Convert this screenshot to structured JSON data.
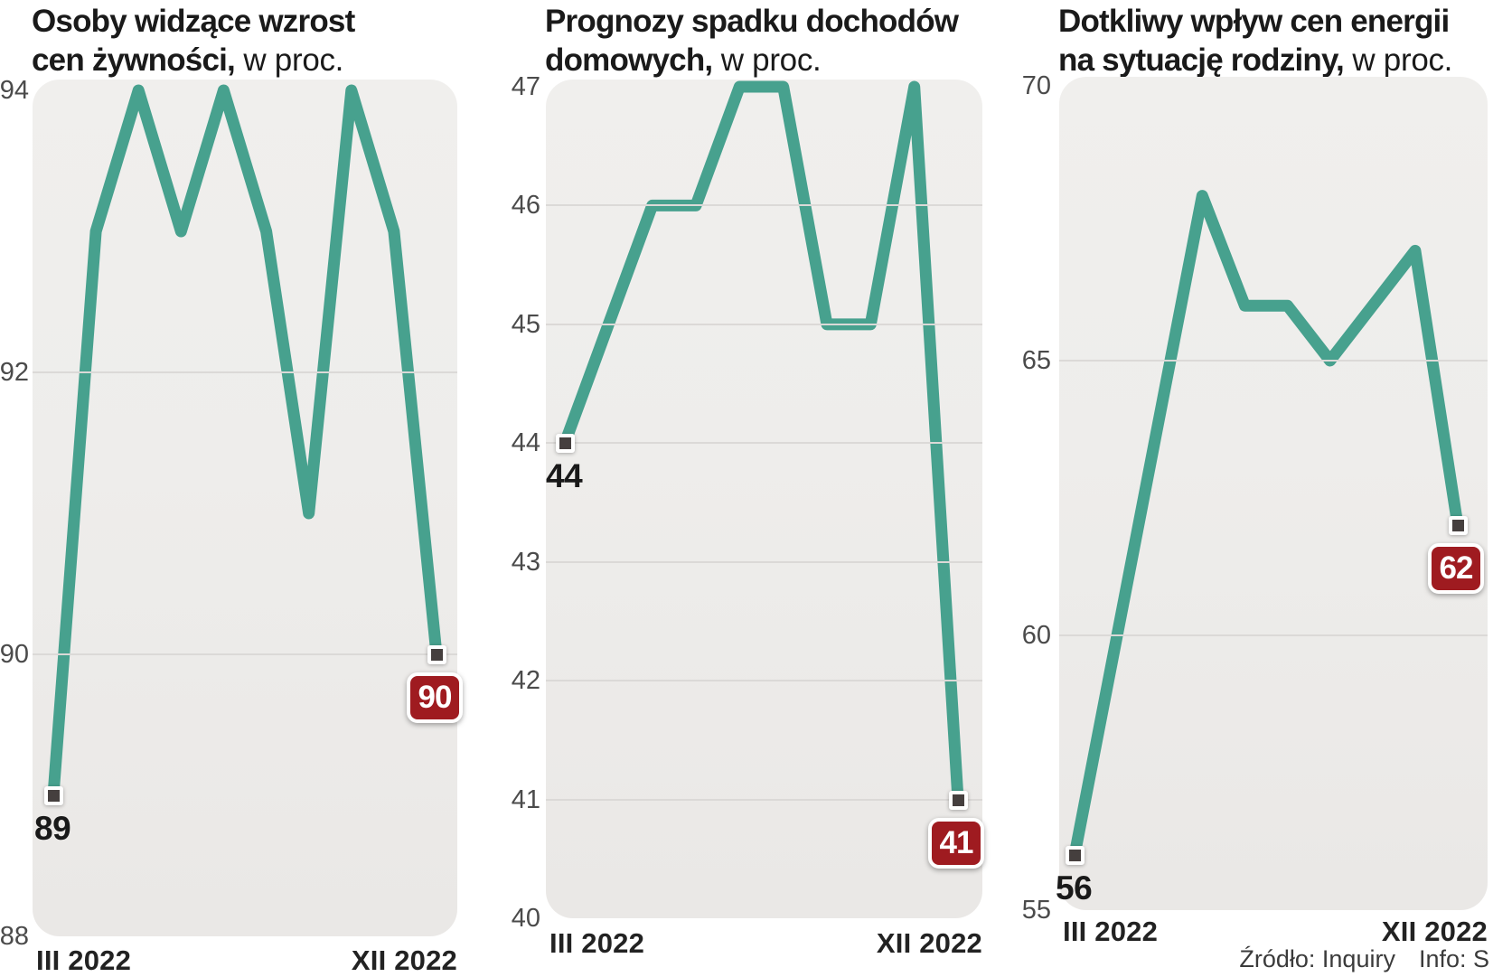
{
  "charts": [
    {
      "title_line1": "Osoby widzące wzrost",
      "title_line2_bold": "cen żywności,",
      "title_line2_light": " w proc.",
      "x_start": "III 2022",
      "x_end": "XII 2022",
      "start_label": "89",
      "end_label": "90"
    },
    {
      "title_line1": "Prognozy spadku dochodów",
      "title_line2_bold": "domowych,",
      "title_line2_light": " w proc.",
      "x_start": "III 2022",
      "x_end": "XII 2022",
      "start_label": "44",
      "end_label": "41"
    },
    {
      "title_line1": "Dotkliwy wpływ cen energii",
      "title_line2_bold": "na sytuację rodziny,",
      "title_line2_light": " w proc.",
      "x_start": "III 2022",
      "x_end": "XII 2022",
      "start_label": "56",
      "end_label": "62"
    }
  ],
  "chart_data": [
    {
      "type": "line",
      "title": "Osoby widzące wzrost cen żywności, w proc.",
      "values": [
        89,
        93,
        94,
        93,
        94,
        93,
        91,
        94,
        93,
        90
      ],
      "yticks": [
        94,
        92,
        90,
        88
      ],
      "ylim": [
        88,
        94
      ],
      "x_axis": {
        "start_label": "III 2022",
        "end_label": "XII 2022",
        "points": 10,
        "note": "10 monthly points from III 2022 to XII 2022"
      },
      "first_point_label": "89",
      "last_point_label": "90",
      "grid": true,
      "legend": false
    },
    {
      "type": "line",
      "title": "Prognozy spadku dochodów domowych, w proc.",
      "values": [
        44,
        45,
        46,
        46,
        47,
        47,
        45,
        45,
        47,
        41
      ],
      "yticks": [
        47,
        46,
        45,
        44,
        43,
        42,
        41,
        40
      ],
      "ylim": [
        40,
        47
      ],
      "x_axis": {
        "start_label": "III 2022",
        "end_label": "XII 2022",
        "points": 10,
        "note": "10 monthly points from III 2022 to XII 2022"
      },
      "first_point_label": "44",
      "last_point_label": "41",
      "grid": true,
      "legend": false
    },
    {
      "type": "line",
      "title": "Dotkliwy wpływ cen energii na sytuację rodziny, w proc.",
      "values": [
        56,
        60,
        64,
        68,
        66,
        66,
        65,
        66,
        67,
        62
      ],
      "yticks": [
        70,
        65,
        60,
        55
      ],
      "ylim": [
        55,
        70
      ],
      "x_axis": {
        "start_label": "III 2022",
        "end_label": "XII 2022",
        "points": 10,
        "note": "10 monthly points from III 2022 to XII 2022"
      },
      "first_point_label": "56",
      "last_point_label": "62",
      "grid": true,
      "legend": false
    }
  ],
  "footer": {
    "source": "Źródło: Inquiry",
    "info": "Info: S"
  },
  "colors": {
    "page-bg": "#ffffff",
    "line": "#47a18e",
    "plot-bg": "#eeedeb",
    "gridline": "#dbd9d7",
    "title-text": "#1a1a1a",
    "axis-text": "#4b4b4b",
    "xlabel-text": "#222222",
    "marker-fill": "#453f3e",
    "marker-border": "#ffffff",
    "badge-bg": "#9f1b20",
    "badge-border": "#ffffff",
    "badge-text": "#ffffff",
    "footer-text": "#3b3b3b"
  }
}
